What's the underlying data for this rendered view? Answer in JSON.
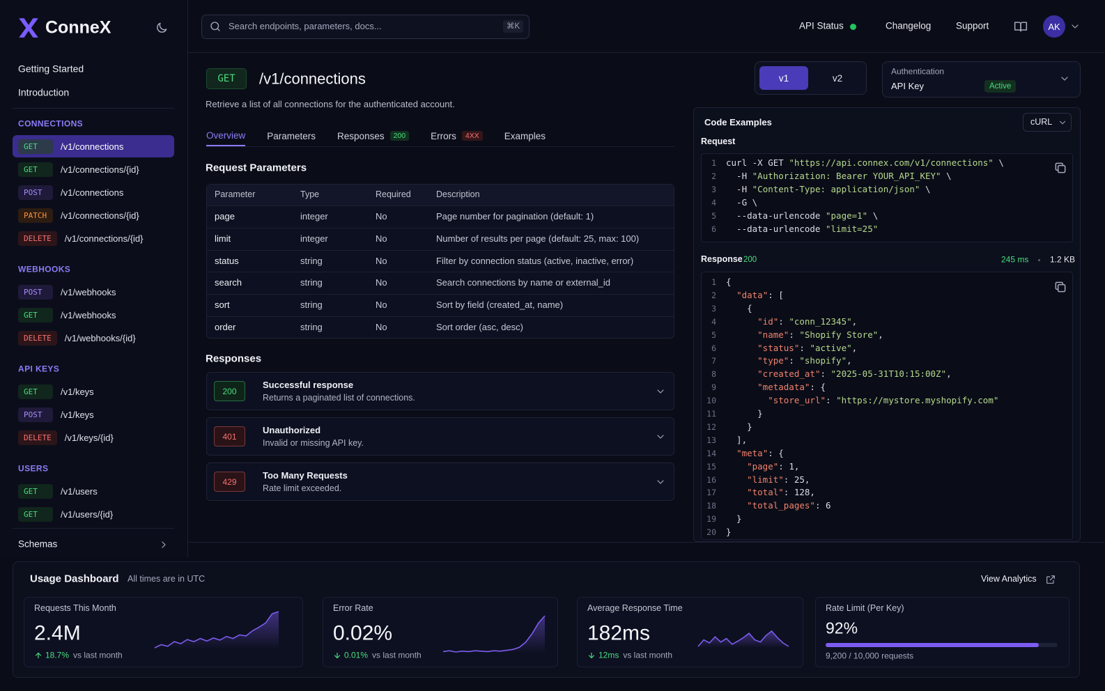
{
  "brand": {
    "name": "ConneX"
  },
  "search": {
    "placeholder": "Search endpoints, parameters, docs...",
    "shortcut": "⌘K"
  },
  "top_nav": {
    "api_status": "API Status",
    "links": [
      "Changelog",
      "Support"
    ],
    "avatar": "AK"
  },
  "method_colors": {
    "GET": {
      "text": "#4ade80",
      "bg": "#11261c"
    },
    "POST": {
      "text": "#a78bfa",
      "bg": "#1f1a3a"
    },
    "PATCH": {
      "text": "#fb923c",
      "bg": "#2c1c12"
    },
    "DELETE": {
      "text": "#f87171",
      "bg": "#2c1519"
    }
  },
  "sidebar": {
    "top_links": [
      "Getting Started",
      "Introduction"
    ],
    "groups": [
      {
        "title": "CONNECTIONS",
        "items": [
          {
            "method": "GET",
            "path": "/v1/connections",
            "active": true
          },
          {
            "method": "GET",
            "path": "/v1/connections/{id}"
          },
          {
            "method": "POST",
            "path": "/v1/connections"
          },
          {
            "method": "PATCH",
            "path": "/v1/connections/{id}"
          },
          {
            "method": "DELETE",
            "path": "/v1/connections/{id}"
          }
        ]
      },
      {
        "title": "WEBHOOKS",
        "items": [
          {
            "method": "POST",
            "path": "/v1/webhooks"
          },
          {
            "method": "GET",
            "path": "/v1/webhooks"
          },
          {
            "method": "DELETE",
            "path": "/v1/webhooks/{id}"
          }
        ]
      },
      {
        "title": "API KEYS",
        "items": [
          {
            "method": "GET",
            "path": "/v1/keys"
          },
          {
            "method": "POST",
            "path": "/v1/keys"
          },
          {
            "method": "DELETE",
            "path": "/v1/keys/{id}"
          }
        ]
      },
      {
        "title": "USERS",
        "items": [
          {
            "method": "GET",
            "path": "/v1/users"
          },
          {
            "method": "GET",
            "path": "/v1/users/{id}"
          }
        ]
      }
    ],
    "footer": "Schemas"
  },
  "endpoint": {
    "method": "GET",
    "path": "/v1/connections",
    "description": "Retrieve a list of all connections for the authenticated account.",
    "versions": [
      "v1",
      "v2"
    ],
    "active_version": 0,
    "auth": {
      "label": "Authentication",
      "value": "API Key",
      "status": "Active"
    }
  },
  "tabs": [
    {
      "label": "Overview",
      "active": true
    },
    {
      "label": "Parameters"
    },
    {
      "label": "Responses",
      "badge": 200,
      "badge_color": "#4ade80",
      "badge_bg": "#13301f"
    },
    {
      "label": "Errors",
      "badge": "4XX",
      "badge_color": "#f87171",
      "badge_bg": "#341619"
    },
    {
      "label": "Examples"
    }
  ],
  "parameters": {
    "title": "Request Parameters",
    "columns": [
      "Parameter",
      "Type",
      "Required",
      "Description"
    ],
    "rows": [
      [
        "page",
        "integer",
        "No",
        "Page number for pagination (default: 1)"
      ],
      [
        "limit",
        "integer",
        "No",
        "Number of results per page (default: 25, max: 100)"
      ],
      [
        "status",
        "string",
        "No",
        "Filter by connection status (active, inactive, error)"
      ],
      [
        "search",
        "string",
        "No",
        "Search connections by name or external_id"
      ],
      [
        "sort",
        "string",
        "No",
        "Sort by field (created_at, name)"
      ],
      [
        "order",
        "string",
        "No",
        "Sort order (asc, desc)"
      ]
    ]
  },
  "responses": {
    "title": "Responses",
    "items": [
      {
        "code": 200,
        "color": "#4ade80",
        "bg": "#0f2419",
        "title": "Successful response",
        "description": "Returns a paginated list of connections."
      },
      {
        "code": 401,
        "color": "#f87171",
        "bg": "#2a1317",
        "title": "Unauthorized",
        "description": "Invalid or missing API key."
      },
      {
        "code": 429,
        "color": "#f87171",
        "bg": "#2a1317",
        "title": "Too Many Requests",
        "description": "Rate limit exceeded."
      }
    ]
  },
  "code_examples": {
    "title": "Code Examples",
    "language": "cURL",
    "request": {
      "label": "Request",
      "lines": [
        {
          "n": 1,
          "code": "curl -X GET \"https://api.connex.com/v1/connections\" \\"
        },
        {
          "n": 2,
          "code": "  -H \"Authorization: Bearer YOUR_API_KEY\" \\"
        },
        {
          "n": 3,
          "code": "  -H \"Content-Type: application/json\" \\"
        },
        {
          "n": 4,
          "code": "  -G \\"
        },
        {
          "n": 5,
          "code": "  --data-urlencode \"page=1\" \\"
        },
        {
          "n": 6,
          "code": "  --data-urlencode \"limit=25\""
        }
      ]
    },
    "response": {
      "label": "Response",
      "status": 200,
      "time": "245 ms",
      "size": "1.2 KB",
      "lines": [
        {
          "n": 1,
          "code": "{"
        },
        {
          "n": 2,
          "code": "  \"data\": ["
        },
        {
          "n": 3,
          "code": "    {"
        },
        {
          "n": 4,
          "code": "      \"id\": \"conn_12345\","
        },
        {
          "n": 5,
          "code": "      \"name\": \"Shopify Store\","
        },
        {
          "n": 6,
          "code": "      \"status\": \"active\","
        },
        {
          "n": 7,
          "code": "      \"type\": \"shopify\","
        },
        {
          "n": 8,
          "code": "      \"created_at\": \"2025-05-31T10:15:00Z\","
        },
        {
          "n": 9,
          "code": "      \"metadata\": {"
        },
        {
          "n": 10,
          "code": "        \"store_url\": \"https://mystore.myshopify.com\""
        },
        {
          "n": 11,
          "code": "      }"
        },
        {
          "n": 12,
          "code": "    }"
        },
        {
          "n": 13,
          "code": "  ],"
        },
        {
          "n": 14,
          "code": "  \"meta\": {"
        },
        {
          "n": 15,
          "code": "    \"page\": 1,"
        },
        {
          "n": 16,
          "code": "    \"limit\": 25,"
        },
        {
          "n": 17,
          "code": "    \"total\": 128,"
        },
        {
          "n": 18,
          "code": "    \"total_pages\": 6"
        },
        {
          "n": 19,
          "code": "  }"
        },
        {
          "n": 20,
          "code": "}"
        }
      ]
    }
  },
  "dashboard": {
    "title": "Usage Dashboard",
    "note": "All times are in UTC",
    "link": "View Analytics",
    "spark_color": "#7c5cf0",
    "cards": [
      {
        "label": "Requests This Month",
        "value": "2.4M",
        "delta": "18.7%",
        "direction": "up",
        "delta_note": "vs last month",
        "sparkline": [
          22,
          28,
          25,
          34,
          30,
          38,
          34,
          40,
          35,
          41,
          37,
          44,
          40,
          47,
          45,
          55,
          62,
          70,
          88,
          92
        ]
      },
      {
        "label": "Error Rate",
        "value": "0.02%",
        "delta": "0.01%",
        "direction": "down",
        "delta_note": "vs last month",
        "sparkline": [
          8,
          10,
          7,
          9,
          8,
          10,
          9,
          8,
          10,
          9,
          11,
          13,
          18,
          30,
          50,
          75,
          92
        ]
      },
      {
        "label": "Average Response Time",
        "value": "182ms",
        "delta": "12ms",
        "direction": "down",
        "delta_note": "vs last month",
        "sparkline": [
          40,
          55,
          48,
          62,
          50,
          58,
          45,
          52,
          60,
          70,
          55,
          50,
          65,
          75,
          60,
          48,
          40
        ]
      },
      {
        "label": "Rate Limit (Per Key)",
        "value": 92,
        "value_label": "92%",
        "delta_note": "9,200 / 10,000 requests"
      }
    ]
  }
}
